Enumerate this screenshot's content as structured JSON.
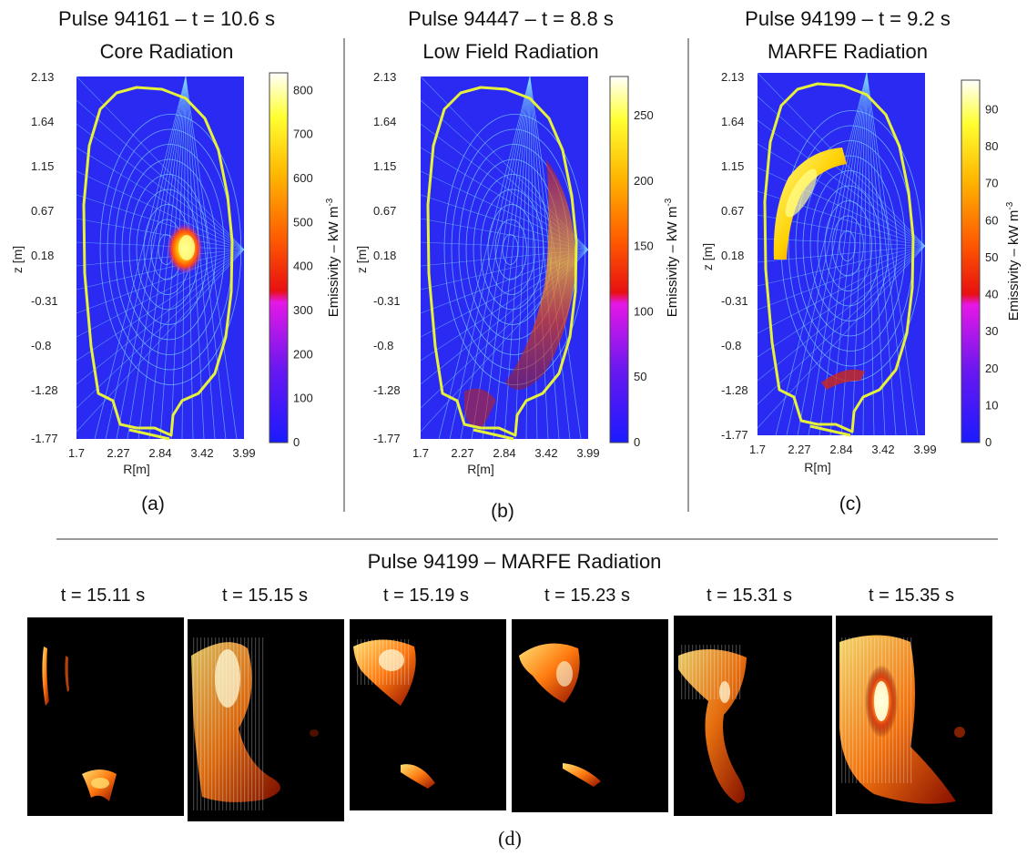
{
  "panels": [
    {
      "title_line1": "Pulse 94161 – t = 10.6 s",
      "title_line2": "Core Radiation",
      "caption": "(a)",
      "xlabel": "R[m]",
      "ylabel": "z [m]",
      "x_ticks": [
        "1.7",
        "2.27",
        "2.84",
        "3.42",
        "3.99"
      ],
      "y_ticks": [
        "2.13",
        "1.64",
        "1.15",
        "0.67",
        "0.18",
        "-0.31",
        "-0.8",
        "-1.28",
        "-1.77"
      ],
      "colorbar_label": "Emissivity – kW m",
      "colorbar_exp": "-3",
      "colorbar_ticks": [
        "800",
        "700",
        "600",
        "500",
        "400",
        "300",
        "200",
        "100",
        "0"
      ],
      "colorbar_max": 840,
      "emission_region": "core"
    },
    {
      "title_line1": "Pulse 94447 – t = 8.8 s",
      "title_line2": "Low Field Radiation",
      "caption": "(b)",
      "xlabel": "R[m]",
      "ylabel": "z [m]",
      "x_ticks": [
        "1.7",
        "2.27",
        "2.84",
        "3.42",
        "3.99"
      ],
      "y_ticks": [
        "2.13",
        "1.64",
        "1.15",
        "0.67",
        "0.18",
        "-0.31",
        "-0.8",
        "-1.28",
        "-1.77"
      ],
      "colorbar_label": "Emissivity – kW m",
      "colorbar_exp": "-3",
      "colorbar_ticks": [
        "250",
        "200",
        "150",
        "100",
        "50",
        "0"
      ],
      "colorbar_max": 280,
      "emission_region": "low-field-side"
    },
    {
      "title_line1": "Pulse 94199 – t = 9.2 s",
      "title_line2": "MARFE Radiation",
      "caption": "(c)",
      "xlabel": "R[m]",
      "ylabel": "z [m]",
      "x_ticks": [
        "1.7",
        "2.27",
        "2.84",
        "3.42",
        "3.99"
      ],
      "y_ticks": [
        "2.13",
        "1.64",
        "1.15",
        "0.67",
        "0.18",
        "-0.31",
        "-0.8",
        "-1.28",
        "-1.77"
      ],
      "colorbar_label": "Emissivity – kW m",
      "colorbar_exp": "-3",
      "colorbar_ticks": [
        "90",
        "80",
        "70",
        "60",
        "50",
        "40",
        "30",
        "20",
        "10",
        "0"
      ],
      "colorbar_max": 98,
      "emission_region": "high-field-side"
    }
  ],
  "bottom": {
    "title": "Pulse 94199 – MARFE Radiation",
    "times": [
      "t = 15.11 s",
      "t = 15.15 s",
      "t = 15.19 s",
      "t = 15.23 s",
      "t = 15.31 s",
      "t = 15.35 s"
    ],
    "caption": "(d)"
  },
  "colors": {
    "plasma_background": "#2a2af2",
    "separatrix": "#e6f23a",
    "flux_lines": "#7fd3ff",
    "camera_background": "#000000"
  }
}
